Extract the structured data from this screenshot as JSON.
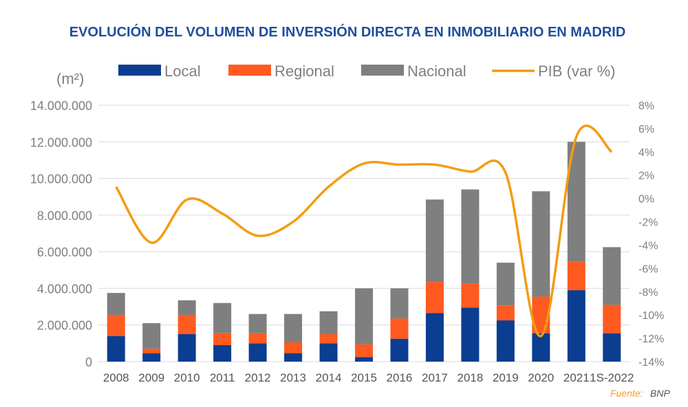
{
  "chart_data": {
    "type": "bar",
    "stacked": true,
    "title": "EVOLUCIÓN DEL VOLUMEN DE INVERSIÓN DIRECTA EN INMOBILIARIO EN MADRID",
    "y_unit_label": "(m²)",
    "categories": [
      "2008",
      "2009",
      "2010",
      "2011",
      "2012",
      "2013",
      "2014",
      "2015",
      "2016",
      "2017",
      "2018",
      "2019",
      "2020",
      "2021",
      "1S-2022"
    ],
    "series": [
      {
        "name": "Local",
        "color": "#0b3d91",
        "values": [
          1400000,
          450000,
          1500000,
          900000,
          1000000,
          450000,
          1000000,
          250000,
          1250000,
          2650000,
          2950000,
          2250000,
          1550000,
          3900000,
          1550000
        ]
      },
      {
        "name": "Regional",
        "color": "#ff5a1f",
        "values": [
          1150000,
          250000,
          1050000,
          650000,
          550000,
          600000,
          500000,
          700000,
          1100000,
          1700000,
          1300000,
          800000,
          2000000,
          1550000,
          1550000
        ]
      },
      {
        "name": "Nacional",
        "color": "#7f7f80",
        "values": [
          1200000,
          1400000,
          800000,
          1650000,
          1050000,
          1550000,
          1250000,
          3050000,
          1650000,
          4500000,
          5150000,
          2350000,
          5750000,
          6550000,
          3150000
        ]
      }
    ],
    "line_series": {
      "name": "PIB (var %)",
      "color": "#f39c12",
      "axis": "right",
      "values": [
        1.0,
        -3.8,
        -0.1,
        -1.3,
        -3.2,
        -2.0,
        1.0,
        3.0,
        2.9,
        2.9,
        2.3,
        2.2,
        -11.8,
        5.3,
        4.0
      ]
    },
    "ylim_left": [
      0,
      14000000
    ],
    "ylim_right": [
      -14,
      8
    ],
    "yticks_left": [
      "0",
      "2.000.000",
      "4.000.000",
      "6.000.000",
      "8.000.000",
      "10.000.000",
      "12.000.000",
      "14.000.000"
    ],
    "yticks_right": [
      "-14%",
      "-12%",
      "-10%",
      "-8%",
      "-6%",
      "-4%",
      "-2%",
      "0%",
      "2%",
      "4%",
      "6%",
      "8%"
    ],
    "grid": true,
    "legend_position": "top"
  },
  "source": {
    "label": "Fuente:",
    "value": "BNP"
  }
}
